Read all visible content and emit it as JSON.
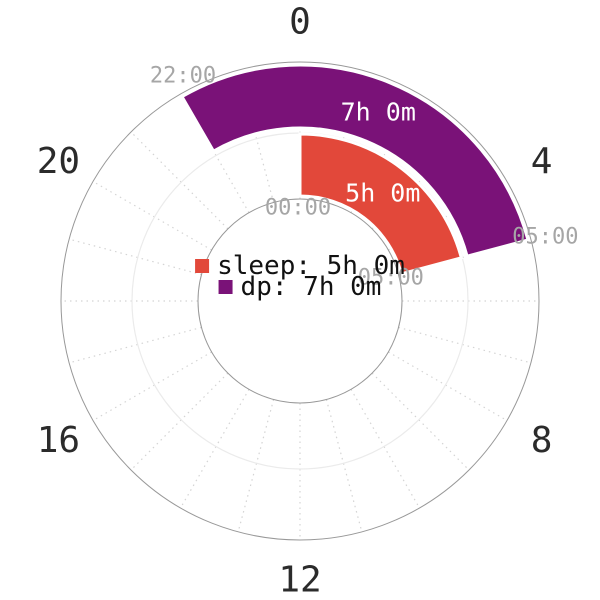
{
  "chart_data": {
    "type": "polar_clock",
    "title": "",
    "clock_hours": 24,
    "direction": "clockwise",
    "zero_position": "top",
    "grid": "dotted-spokes-every-hour",
    "hour_ticks": {
      "values": [
        0,
        4,
        8,
        12,
        16,
        20
      ],
      "labels": [
        "0",
        "4",
        "8",
        "12",
        "16",
        "20"
      ],
      "color": "#2b2b2b"
    },
    "series": [
      {
        "name": "sleep",
        "ring": "inner",
        "start_time": "00:00",
        "end_time": "05:00",
        "start_hour": 0,
        "end_hour": 5,
        "duration_hours": 5,
        "duration_label": "5h 0m",
        "color": "#e2483a"
      },
      {
        "name": "dp",
        "ring": "outer",
        "start_time": "22:00",
        "end_time": "05:00",
        "start_hour": 22,
        "end_hour": 29,
        "duration_hours": 7,
        "duration_label": "7h 0m",
        "color": "#7a1278"
      }
    ],
    "time_annotations": [
      {
        "text": "22:00",
        "hour": 22,
        "edge": "outer"
      },
      {
        "text": "05:00",
        "hour": 5,
        "edge": "outer"
      },
      {
        "text": "00:00",
        "hour": 0,
        "edge": "inner"
      },
      {
        "text": "05:00",
        "hour": 5,
        "edge": "inner"
      }
    ],
    "annotation_color": "#a6a6a6",
    "legend": {
      "position": "center",
      "items": [
        {
          "label": "sleep: 5h 0m",
          "color": "#e2483a"
        },
        {
          "label": "dp: 7h 0m",
          "color": "#7a1278"
        }
      ]
    }
  }
}
